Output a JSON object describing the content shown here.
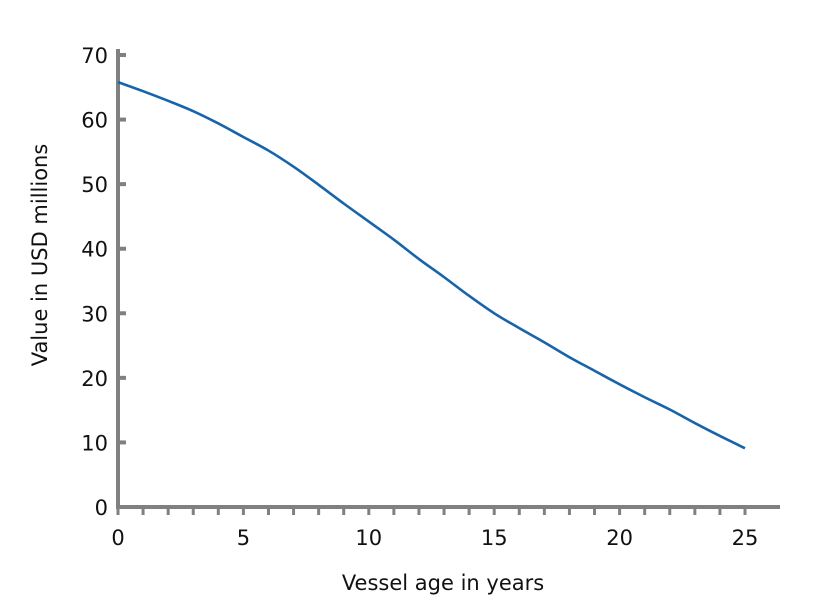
{
  "chart_data": {
    "type": "line",
    "title": "",
    "xlabel": "Vessel age in years",
    "ylabel": "Value in USD millions",
    "xlim": [
      0,
      25
    ],
    "ylim": [
      0,
      70
    ],
    "xticks": [
      "0",
      "5",
      "10",
      "15",
      "20",
      "25"
    ],
    "yticks": [
      "0",
      "10",
      "20",
      "30",
      "40",
      "50",
      "60",
      "70"
    ],
    "grid": false,
    "line_color": "#1764aa",
    "axis_color": "#808080",
    "series": [
      {
        "x": [
          0,
          1,
          2,
          3,
          4,
          5,
          6,
          7,
          8,
          9,
          10,
          11,
          12,
          13,
          14,
          15,
          16,
          17,
          18,
          19,
          20,
          21,
          22,
          23,
          24,
          25
        ],
        "y": [
          65.8,
          64.4,
          62.9,
          61.3,
          59.4,
          57.3,
          55.2,
          52.7,
          49.9,
          47.0,
          44.2,
          41.4,
          38.4,
          35.6,
          32.7,
          30.0,
          27.7,
          25.5,
          23.2,
          21.1,
          19.0,
          17.0,
          15.1,
          13.0,
          11.0,
          9.1
        ]
      }
    ]
  }
}
